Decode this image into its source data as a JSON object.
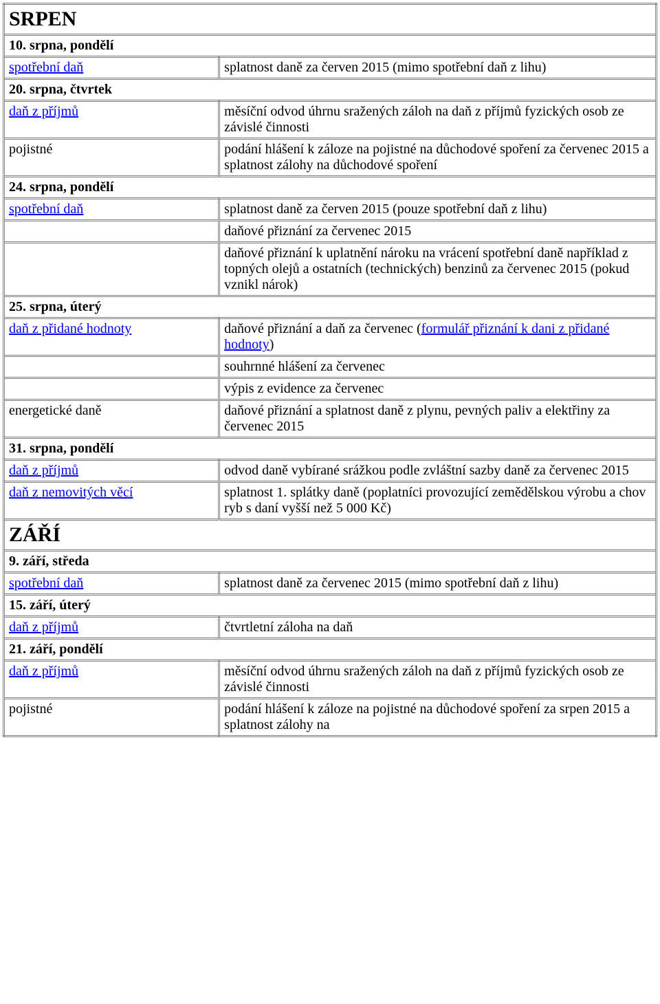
{
  "months": {
    "srpen": {
      "title": "SRPEN",
      "dates": [
        {
          "label": "10. srpna, pondělí",
          "rows": [
            {
              "left": "spotřební daň",
              "link": true,
              "right": "splatnost daně za červen 2015 (mimo spotřební daň z lihu)"
            }
          ]
        },
        {
          "label": "20. srpna, čtvrtek",
          "rows": [
            {
              "left": "daň z příjmů",
              "link": true,
              "right": "měsíční odvod úhrnu sražených záloh na daň z příjmů fyzických osob ze závislé činnosti"
            },
            {
              "left": "pojistné",
              "link": false,
              "right": "podání hlášení k záloze na pojistné na důchodové spoření za červenec 2015 a splatnost zálohy na důchodové spoření"
            }
          ]
        },
        {
          "label": "24. srpna, pondělí",
          "rows": [
            {
              "left": "spotřební daň",
              "link": true,
              "right": "splatnost daně za červen 2015 (pouze spotřební daň z lihu)"
            },
            {
              "left": "",
              "link": false,
              "right": "daňové přiznání za červenec 2015"
            },
            {
              "left": "",
              "link": false,
              "right": "daňové přiznání k uplatnění nároku na vrácení spotřební daně například z topných olejů a ostatních (technických) benzinů za červenec 2015 (pokud vznikl nárok)"
            }
          ]
        },
        {
          "label": "25. srpna, úterý",
          "rows": [
            {
              "left": "daň z přidané hodnoty",
              "link": true,
              "right_prefix": "daňové přiznání a daň za červenec (",
              "right_link": "formulář přiznání k dani z přidané hodnoty",
              "right_suffix": ")"
            },
            {
              "left": "",
              "link": false,
              "right": "souhrnné hlášení za červenec"
            },
            {
              "left": "",
              "link": false,
              "right": "výpis z evidence za červenec"
            },
            {
              "left": "energetické daně",
              "link": false,
              "right": "daňové přiznání a splatnost daně z plynu, pevných paliv a elektřiny za červenec 2015"
            }
          ]
        },
        {
          "label": "31. srpna, pondělí",
          "rows": [
            {
              "left": "daň z příjmů",
              "link": true,
              "right": "odvod daně vybírané srážkou podle zvláštní sazby daně za červenec 2015"
            },
            {
              "left": "daň z nemovitých věcí",
              "link": true,
              "right": "splatnost 1. splátky daně (poplatníci provozující zemědělskou výrobu a chov ryb s daní vyšší než 5 000 Kč)"
            }
          ]
        }
      ]
    },
    "zari": {
      "title": "ZÁŘÍ",
      "dates": [
        {
          "label": "9. září, středa",
          "rows": [
            {
              "left": "spotřební daň",
              "link": true,
              "right": "splatnost daně za červenec 2015 (mimo spotřební daň z lihu)"
            }
          ]
        },
        {
          "label": "15. září, úterý",
          "rows": [
            {
              "left": "daň z příjmů",
              "link": true,
              "right": "čtvrtletní záloha na daň"
            }
          ]
        },
        {
          "label": "21. září, pondělí",
          "rows": [
            {
              "left": "daň z příjmů",
              "link": true,
              "right": "měsíční odvod úhrnu sražených záloh na daň z příjmů fyzických osob ze závislé činnosti"
            },
            {
              "left": "pojistné",
              "link": false,
              "right": "podání hlášení k záloze na pojistné na důchodové spoření za srpen 2015 a splatnost zálohy na"
            }
          ]
        }
      ]
    }
  }
}
